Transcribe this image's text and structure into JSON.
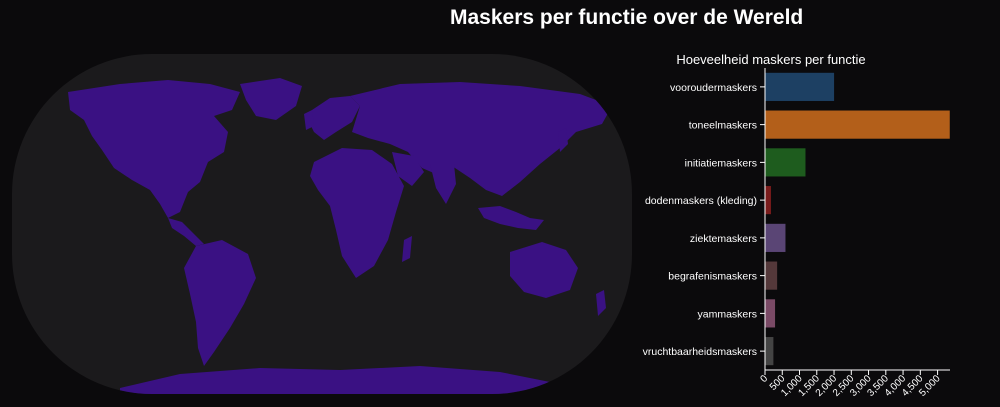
{
  "page": {
    "title": "Maskers per functie over de Wereld"
  },
  "map": {
    "ocean_color": "#1b1a1c",
    "land_color": "#3a1183"
  },
  "chart_data": {
    "type": "bar",
    "orientation": "horizontal",
    "title": "Hoeveelheid maskers per functie",
    "categories": [
      "vooroudermaskers",
      "toneelmaskers",
      "initiatiemaskers",
      "dodenmaskers (kleding)",
      "ziektemaskers",
      "begrafenismaskers",
      "yammaskers",
      "vruchtbaarheidsmaskers"
    ],
    "values": [
      2010,
      5360,
      1180,
      180,
      600,
      360,
      300,
      250
    ],
    "colors": [
      "#1d4063",
      "#b35f1a",
      "#1e5c1e",
      "#7a1c1c",
      "#5a4575",
      "#54383a",
      "#7a4a66",
      "#444444"
    ],
    "xlim": [
      0,
      5360
    ],
    "x_ticks": [
      0,
      500,
      1000,
      1500,
      2000,
      2500,
      3000,
      3500,
      4000,
      4500,
      5000
    ],
    "x_tick_labels": [
      "0",
      "500",
      "1,000",
      "1,500",
      "2,000",
      "2,500",
      "3,000",
      "3,500",
      "4,000",
      "4,500",
      "5,000"
    ],
    "xlabel": "",
    "ylabel": ""
  }
}
